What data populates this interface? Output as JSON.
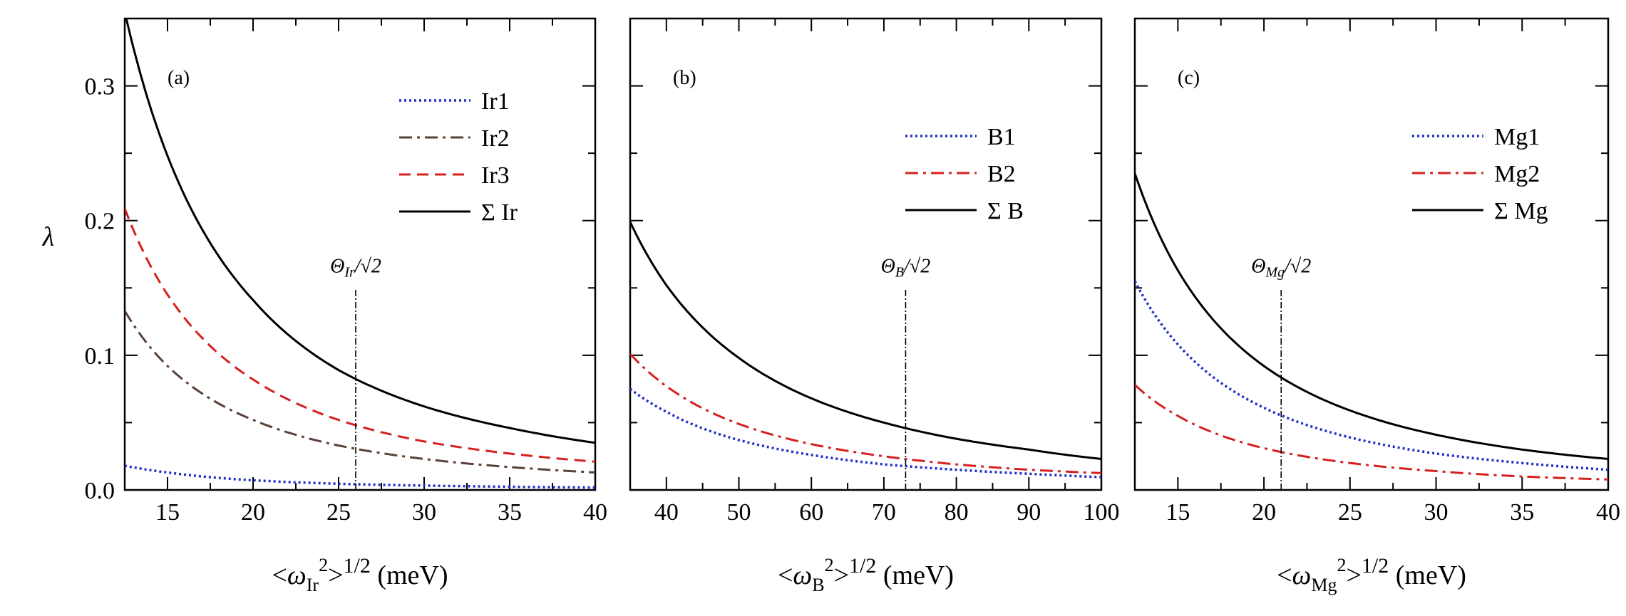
{
  "ylabel": "λ",
  "chart_data": [
    {
      "type": "line",
      "panel": "(a)",
      "xlabel": "<ω_Ir²>^1/2 (meV)",
      "xlabel_parts": {
        "pre": "<ω",
        "sub": "Ir",
        "sup2": "2",
        "post": ">",
        "exp": "1/2",
        "unit": " (meV)"
      },
      "xlim": [
        12.5,
        40
      ],
      "ylim": [
        0,
        0.35
      ],
      "xticks": [
        15,
        20,
        25,
        30,
        35,
        40
      ],
      "yticks": [
        0.0,
        0.1,
        0.2,
        0.3
      ],
      "ytick_labels": [
        "0.0",
        "0.1",
        "0.2",
        "0.3"
      ],
      "legend_position": "top-right",
      "vline": {
        "x": 26,
        "label": "Θ_Ir/√2",
        "label_parts": {
          "main": "Θ",
          "sub": "Ir",
          "tail": "/√2"
        },
        "y_from": 0,
        "y_to": 0.15
      },
      "series": [
        {
          "name": "Ir1",
          "color": "#1f2fc8",
          "style": "dotted",
          "x": [
            12.5,
            15,
            20,
            25,
            30,
            35,
            40
          ],
          "y": [
            0.018,
            0.013,
            0.0072,
            0.0046,
            0.0032,
            0.0024,
            0.0018
          ]
        },
        {
          "name": "Ir2",
          "color": "#5a4038",
          "style": "dashdot",
          "x": [
            12.5,
            15,
            20,
            25,
            30,
            35,
            40
          ],
          "y": [
            0.133,
            0.092,
            0.052,
            0.033,
            0.023,
            0.017,
            0.013
          ]
        },
        {
          "name": "Ir3",
          "color": "#d62020",
          "style": "dashed",
          "x": [
            12.5,
            15,
            20,
            25,
            30,
            35,
            40
          ],
          "y": [
            0.209,
            0.145,
            0.082,
            0.052,
            0.036,
            0.027,
            0.021
          ]
        },
        {
          "name": "Σ Ir",
          "color": "#000000",
          "style": "solid",
          "x": [
            12.5,
            15,
            20,
            25,
            30,
            35,
            40
          ],
          "y": [
            0.355,
            0.248,
            0.141,
            0.089,
            0.062,
            0.046,
            0.035
          ]
        }
      ]
    },
    {
      "type": "line",
      "panel": "(b)",
      "xlabel": "<ω_B²>^1/2 (meV)",
      "xlabel_parts": {
        "pre": "<ω",
        "sub": "B",
        "sup2": "2",
        "post": ">",
        "exp": "1/2",
        "unit": " (meV)"
      },
      "xlim": [
        35,
        100
      ],
      "ylim": [
        0,
        0.35
      ],
      "xticks": [
        40,
        50,
        60,
        70,
        80,
        90,
        100
      ],
      "yticks": [
        0.0,
        0.1,
        0.2,
        0.3
      ],
      "legend_position": "top-right",
      "vline": {
        "x": 73,
        "label": "Θ_B/√2",
        "label_parts": {
          "main": "Θ",
          "sub": "B",
          "tail": "/√2"
        },
        "y_from": 0,
        "y_to": 0.15
      },
      "series": [
        {
          "name": "B1",
          "color": "#1f2fc8",
          "style": "dotted",
          "x": [
            35,
            40,
            50,
            60,
            70,
            80,
            90,
            100
          ],
          "y": [
            0.075,
            0.058,
            0.037,
            0.026,
            0.019,
            0.015,
            0.012,
            0.0095
          ]
        },
        {
          "name": "B2",
          "color": "#d62020",
          "style": "dashdot",
          "x": [
            35,
            40,
            50,
            60,
            70,
            80,
            90,
            100
          ],
          "y": [
            0.101,
            0.077,
            0.049,
            0.034,
            0.025,
            0.019,
            0.015,
            0.0125
          ]
        },
        {
          "name": "Σ B",
          "color": "#000000",
          "style": "solid",
          "x": [
            35,
            40,
            50,
            60,
            70,
            80,
            90,
            100
          ],
          "y": [
            0.199,
            0.152,
            0.098,
            0.068,
            0.05,
            0.038,
            0.03,
            0.023
          ]
        }
      ]
    },
    {
      "type": "line",
      "panel": "(c)",
      "xlabel": "<ω_Mg²>^1/2 (meV)",
      "xlabel_parts": {
        "pre": "<ω",
        "sub": "Mg",
        "sup2": "2",
        "post": ">",
        "exp": "1/2",
        "unit": " (meV)"
      },
      "xlim": [
        12.5,
        40
      ],
      "ylim": [
        0,
        0.35
      ],
      "xticks": [
        15,
        20,
        25,
        30,
        35,
        40
      ],
      "yticks": [
        0.0,
        0.1,
        0.2,
        0.3
      ],
      "legend_position": "top-right",
      "vline": {
        "x": 21,
        "label": "Θ_Mg/√2",
        "label_parts": {
          "main": "Θ",
          "sub": "Mg",
          "tail": "/√2"
        },
        "y_from": 0,
        "y_to": 0.15
      },
      "series": [
        {
          "name": "Mg1",
          "color": "#1f2fc8",
          "style": "dotted",
          "x": [
            12.5,
            15,
            20,
            25,
            30,
            35,
            40
          ],
          "y": [
            0.155,
            0.108,
            0.061,
            0.039,
            0.027,
            0.02,
            0.015
          ]
        },
        {
          "name": "Mg2",
          "color": "#d62020",
          "style": "dashdot",
          "x": [
            12.5,
            15,
            20,
            25,
            30,
            35,
            40
          ],
          "y": [
            0.078,
            0.055,
            0.031,
            0.02,
            0.014,
            0.01,
            0.0078
          ]
        },
        {
          "name": "Σ Mg",
          "color": "#000000",
          "style": "solid",
          "x": [
            12.5,
            15,
            20,
            25,
            30,
            35,
            40
          ],
          "y": [
            0.235,
            0.163,
            0.092,
            0.059,
            0.041,
            0.03,
            0.023
          ]
        }
      ]
    }
  ]
}
